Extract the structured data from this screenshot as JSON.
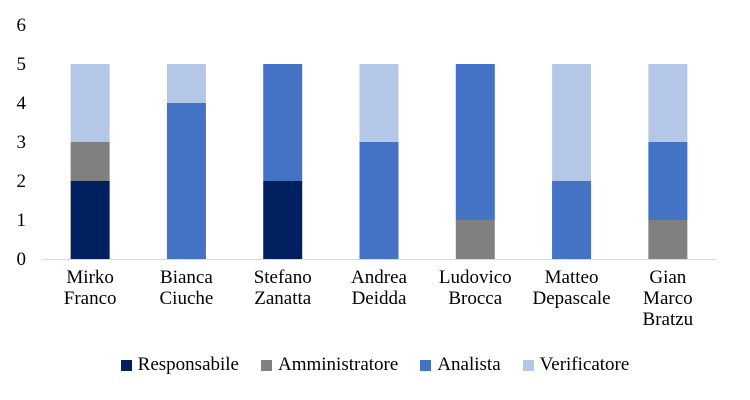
{
  "chart_data": {
    "type": "bar",
    "stacked": true,
    "categories": [
      [
        "Mirko",
        "Franco"
      ],
      [
        "Bianca",
        "Ciuche"
      ],
      [
        "Stefano",
        "Zanatta"
      ],
      [
        "Andrea",
        "Deidda"
      ],
      [
        "Ludovico",
        "Brocca"
      ],
      [
        "Matteo",
        "Depascale"
      ],
      [
        "Gian",
        "Marco",
        "Bratzu"
      ]
    ],
    "series": [
      {
        "name": "Responsabile",
        "color": "#002060",
        "values": [
          2,
          0,
          2,
          0,
          0,
          0,
          0
        ]
      },
      {
        "name": "Amministratore",
        "color": "#808080",
        "values": [
          1,
          0,
          0,
          0,
          1,
          0,
          1
        ]
      },
      {
        "name": "Analista",
        "color": "#4472C4",
        "values": [
          0,
          4,
          3,
          3,
          4,
          2,
          2
        ]
      },
      {
        "name": "Verificatore",
        "color": "#B4C7E7",
        "values": [
          2,
          1,
          0,
          2,
          0,
          3,
          2
        ]
      }
    ],
    "yticks": [
      "0",
      "1",
      "2",
      "3",
      "4",
      "5",
      "6"
    ],
    "ylim": [
      0,
      6
    ],
    "grid": false,
    "legend_position": "bottom"
  }
}
